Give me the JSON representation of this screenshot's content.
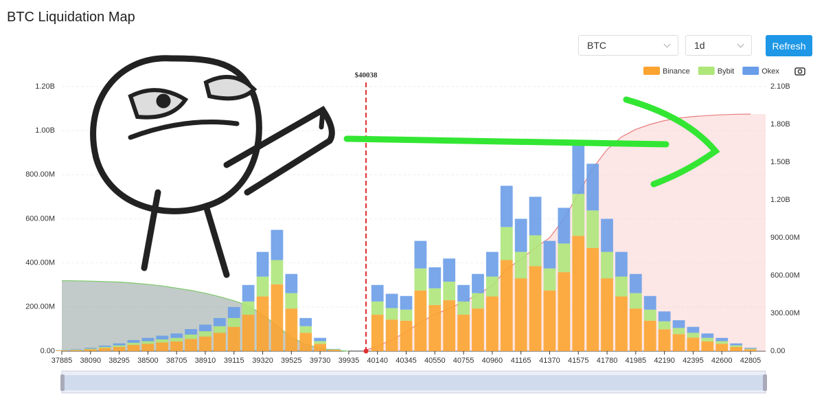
{
  "header": {
    "title": "BTC Liquidation Map",
    "symbol": "BTC",
    "interval": "1d",
    "button": "Refresh"
  },
  "chart_data": {
    "type": "bar",
    "stacked": true,
    "annotation": "$40038",
    "categories": [
      "37885",
      null,
      "38090",
      null,
      "38295",
      null,
      "38500",
      null,
      "38705",
      null,
      "38910",
      null,
      "39115",
      null,
      "39320",
      null,
      "39525",
      null,
      "39730",
      null,
      "39935",
      null,
      "40140",
      null,
      "40345",
      null,
      "40550",
      null,
      "40755",
      null,
      "40960",
      null,
      "41165",
      null,
      "41370",
      null,
      "41575",
      null,
      "41780",
      null,
      "41985",
      null,
      "42190",
      null,
      "42395",
      null,
      "42600",
      null,
      "42805"
    ],
    "series": [
      {
        "name": "Binance",
        "color": "#fba430",
        "values": [
          3,
          4,
          8,
          14,
          19,
          28,
          33,
          39,
          44,
          55,
          66,
          83,
          110,
          165,
          248,
          303,
          193,
          83,
          33,
          6,
          0,
          0,
          165,
          143,
          138,
          275,
          209,
          231,
          165,
          193,
          248,
          413,
          330,
          385,
          275,
          358,
          523,
          468,
          330,
          248,
          193,
          138,
          99,
          77,
          61,
          44,
          33,
          19,
          8
        ]
      },
      {
        "name": "Bybit",
        "color": "#aee67a",
        "values": [
          1,
          2,
          3,
          5,
          7,
          10,
          12,
          14,
          16,
          20,
          24,
          30,
          40,
          60,
          90,
          110,
          70,
          30,
          12,
          2,
          0,
          0,
          60,
          52,
          50,
          100,
          76,
          84,
          60,
          70,
          90,
          150,
          120,
          140,
          100,
          130,
          190,
          170,
          120,
          90,
          70,
          50,
          36,
          28,
          22,
          16,
          12,
          7,
          3
        ]
      },
      {
        "name": "Okex",
        "color": "#6a9de8",
        "values": [
          1,
          2,
          4,
          6,
          9,
          12,
          15,
          17,
          20,
          25,
          30,
          37,
          50,
          75,
          112,
          137,
          87,
          37,
          15,
          2,
          0,
          0,
          75,
          65,
          62,
          125,
          95,
          105,
          75,
          87,
          112,
          187,
          150,
          175,
          125,
          162,
          237,
          212,
          150,
          112,
          87,
          62,
          45,
          35,
          27,
          20,
          15,
          9,
          4
        ]
      }
    ],
    "cumulative": [
      {
        "color": "#7dc96b",
        "fill": "rgba(120,140,135,0.45)",
        "axis": "y2",
        "values": [
          560,
          558,
          555,
          552,
          548,
          540,
          530,
          518,
          500,
          482,
          460,
          432,
          400,
          360,
          290,
          200,
          110,
          55,
          22,
          6,
          0,
          null,
          null,
          null,
          null,
          null,
          null,
          null,
          null,
          null,
          null,
          null,
          null,
          null,
          null,
          null,
          null,
          null,
          null,
          null,
          null,
          null,
          null,
          null,
          null,
          null,
          null,
          null,
          null
        ]
      },
      {
        "color": "#e87b7b",
        "fill": "rgba(250,200,200,0.45)",
        "axis": "y2",
        "values": [
          null,
          null,
          null,
          null,
          null,
          null,
          null,
          null,
          null,
          null,
          null,
          null,
          null,
          null,
          null,
          null,
          null,
          null,
          null,
          null,
          null,
          0,
          40,
          90,
          150,
          230,
          290,
          340,
          390,
          450,
          520,
          650,
          730,
          820,
          900,
          1050,
          1250,
          1450,
          1600,
          1700,
          1760,
          1800,
          1830,
          1850,
          1862,
          1870,
          1876,
          1880,
          1882
        ]
      }
    ],
    "ylim": [
      0,
      1200
    ],
    "yticks": [
      {
        "value": 0,
        "label": "0.00"
      },
      {
        "value": 200,
        "label": "200.00M"
      },
      {
        "value": 400,
        "label": "400.00M"
      },
      {
        "value": 600,
        "label": "600.00M"
      },
      {
        "value": 800,
        "label": "800.00M"
      },
      {
        "value": 1000,
        "label": "1.00B"
      },
      {
        "value": 1200,
        "label": "1.20B"
      }
    ],
    "y2lim": [
      0,
      2100
    ],
    "y2ticks": [
      {
        "value": 0,
        "label": "0.00"
      },
      {
        "value": 300,
        "label": "300.00M"
      },
      {
        "value": 600,
        "label": "600.00M"
      },
      {
        "value": 900,
        "label": "900.00M"
      },
      {
        "value": 1200,
        "label": "1.20B"
      },
      {
        "value": 1500,
        "label": "1.50B"
      },
      {
        "value": 1800,
        "label": "1.80B"
      },
      {
        "value": 2100,
        "label": "2.10B"
      }
    ],
    "grid": true,
    "legend": "top-right"
  }
}
